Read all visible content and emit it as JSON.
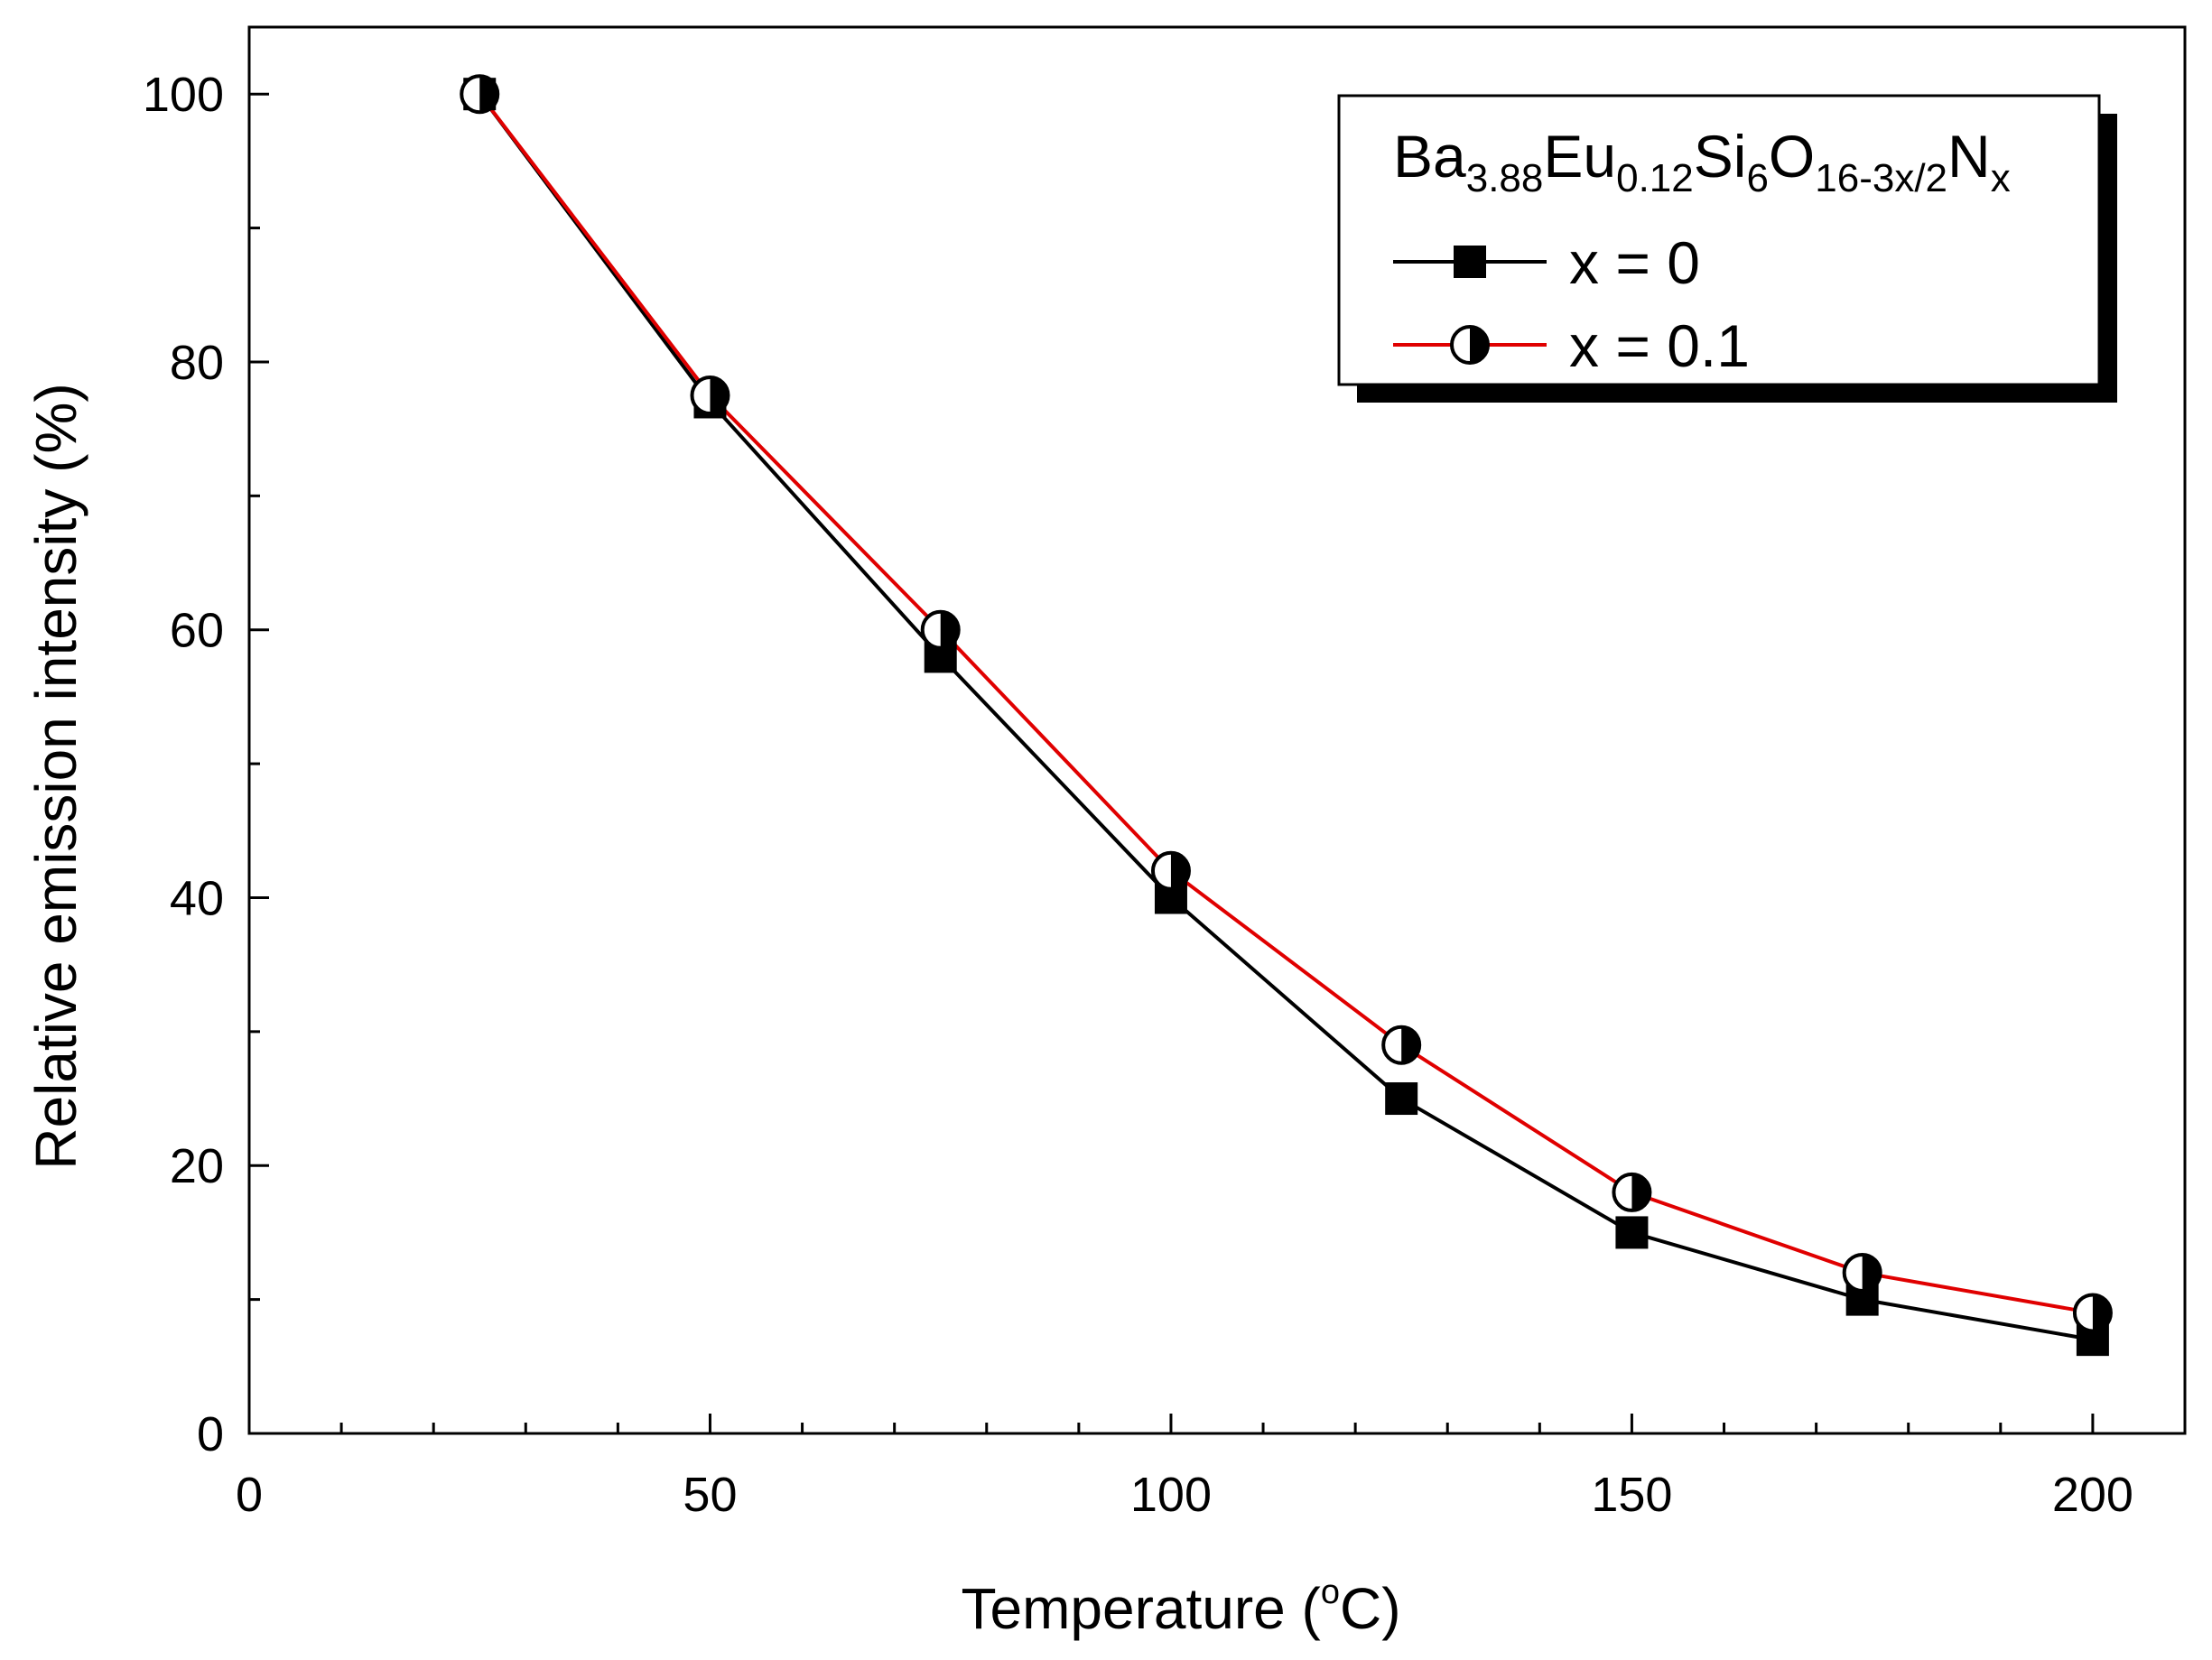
{
  "chart_data": {
    "type": "line",
    "xlabel": "Temperature (",
    "xlabel_degree": "o",
    "xlabel_unit_tail": "C)",
    "ylabel": "Relative emission intensity (%)",
    "xlim": [
      0,
      210
    ],
    "ylim": [
      0,
      105
    ],
    "x_ticks": [
      0,
      50,
      100,
      150,
      200
    ],
    "y_ticks": [
      0,
      20,
      40,
      60,
      80,
      100
    ],
    "x_minor_step": 10,
    "y_minor_step": 10,
    "grid": false,
    "legend_position": "top-right",
    "legend_title": {
      "parts": [
        {
          "text": "Ba",
          "sub": false
        },
        {
          "text": "3.88",
          "sub": true
        },
        {
          "text": "Eu",
          "sub": false
        },
        {
          "text": "0.12",
          "sub": true
        },
        {
          "text": "Si",
          "sub": false
        },
        {
          "text": "6",
          "sub": true
        },
        {
          "text": "O",
          "sub": false
        },
        {
          "text": "16-3x/2",
          "sub": true
        },
        {
          "text": "N",
          "sub": false
        },
        {
          "text": "x",
          "sub": true
        }
      ]
    },
    "x": [
      25,
      50,
      75,
      100,
      125,
      150,
      175,
      200
    ],
    "series": [
      {
        "name": "x = 0",
        "color": "#000000",
        "marker": "square",
        "values": [
          100,
          77,
          58,
          40,
          25,
          15,
          10,
          7
        ]
      },
      {
        "name": "x = 0.1",
        "color": "#e00000",
        "marker": "half-filled-circle",
        "values": [
          100,
          77.5,
          60,
          42,
          29,
          18,
          12,
          9
        ]
      }
    ]
  }
}
